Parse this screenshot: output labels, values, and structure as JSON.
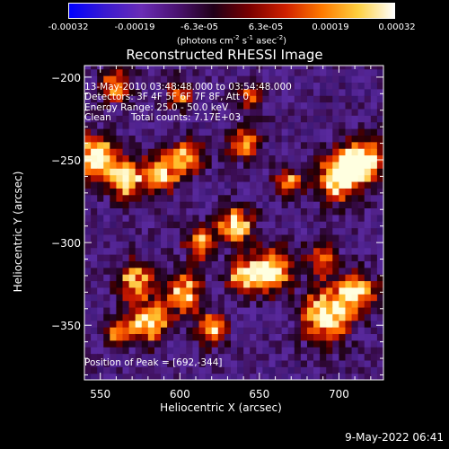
{
  "colorbar": {
    "ticks": [
      "-0.00032",
      "-0.00019",
      "-6.3e-05",
      "6.3e-05",
      "0.00019",
      "0.00032"
    ],
    "unit_prefix": "(photons cm",
    "unit_exp1": "-2",
    "unit_mid1": " s",
    "unit_exp2": "-1",
    "unit_mid2": " asec",
    "unit_exp3": "-2",
    "unit_suffix": ")",
    "colors": [
      "#0000ff",
      "#3a1ad0",
      "#6a2cb6",
      "#4a1270",
      "#200018",
      "#7a0000",
      "#d02000",
      "#ff7a00",
      "#ffd040",
      "#ffffff"
    ]
  },
  "chart_data": {
    "type": "heatmap",
    "title": "Reconstructed RHESSI Image",
    "xlabel": "Heliocentric X (arcsec)",
    "ylabel": "Heliocentric Y (arcsec)",
    "xlim": [
      540,
      728
    ],
    "ylim": [
      -383,
      -193
    ],
    "xticks": [
      550,
      600,
      650,
      700
    ],
    "yticks": [
      -200,
      -250,
      -300,
      -350
    ],
    "time_range": "13-May-2010 03:48:48.000 to 03:54:48.000",
    "detectors": "Detectors: 3F 4F 5F 6F 7F 8F, Att 0",
    "energy_range": "Energy Range: 25.0 - 50.0 keV",
    "clean_label": "Clean",
    "total_counts": "Total counts: 7.17E+03",
    "peak_label": "Position of Peak = [692,-344]",
    "peak": [
      692,
      -344
    ],
    "hot_regions": [
      {
        "x": 547,
        "y": -248,
        "level": 1.0,
        "r": 9
      },
      {
        "x": 566,
        "y": -262,
        "level": 0.85,
        "r": 8
      },
      {
        "x": 588,
        "y": -258,
        "level": 0.8,
        "r": 8
      },
      {
        "x": 605,
        "y": -248,
        "level": 0.75,
        "r": 7
      },
      {
        "x": 640,
        "y": -240,
        "level": 0.7,
        "r": 7
      },
      {
        "x": 668,
        "y": -262,
        "level": 0.65,
        "r": 6
      },
      {
        "x": 700,
        "y": -260,
        "level": 0.95,
        "r": 10
      },
      {
        "x": 715,
        "y": -250,
        "level": 0.95,
        "r": 9
      },
      {
        "x": 635,
        "y": -290,
        "level": 0.85,
        "r": 8
      },
      {
        "x": 612,
        "y": -300,
        "level": 0.7,
        "r": 7
      },
      {
        "x": 658,
        "y": -316,
        "level": 0.9,
        "r": 9
      },
      {
        "x": 640,
        "y": -320,
        "level": 0.85,
        "r": 7
      },
      {
        "x": 603,
        "y": -330,
        "level": 0.85,
        "r": 8
      },
      {
        "x": 572,
        "y": -322,
        "level": 0.8,
        "r": 8
      },
      {
        "x": 580,
        "y": -348,
        "level": 0.9,
        "r": 9
      },
      {
        "x": 560,
        "y": -353,
        "level": 0.6,
        "r": 6
      },
      {
        "x": 620,
        "y": -352,
        "level": 0.7,
        "r": 7
      },
      {
        "x": 692,
        "y": -344,
        "level": 1.0,
        "r": 11
      },
      {
        "x": 712,
        "y": -330,
        "level": 0.85,
        "r": 8
      },
      {
        "x": 690,
        "y": -310,
        "level": 0.65,
        "r": 7
      },
      {
        "x": 560,
        "y": -205,
        "level": 0.7,
        "r": 7
      },
      {
        "x": 600,
        "y": -210,
        "level": 0.6,
        "r": 6
      },
      {
        "x": 645,
        "y": -212,
        "level": 0.55,
        "r": 6
      }
    ]
  },
  "timestamp": "9-May-2022 06:41"
}
